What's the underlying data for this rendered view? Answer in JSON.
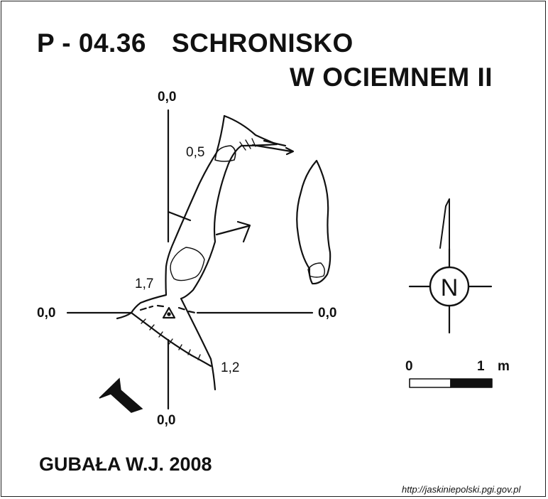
{
  "title": {
    "code": "P - 04.36",
    "name_line1": "SCHRONISKO",
    "name_line2": "W OCIEMNEM II"
  },
  "section_labels": {
    "top": "0,0",
    "bottom": "0,0",
    "left": "0,0",
    "right": "0,0"
  },
  "depths": {
    "entrance_top": "0,5",
    "middle": "1,7",
    "bottom_right": "1,2"
  },
  "scale": {
    "zero": "0",
    "one": "1",
    "unit": "m"
  },
  "compass": {
    "north_letter": "N"
  },
  "author": "GUBAŁA W.J. 2008",
  "source": "http://jaskiniepolski.pgi.gov.pl",
  "colors": {
    "ink": "#111111",
    "background": "#ffffff"
  }
}
